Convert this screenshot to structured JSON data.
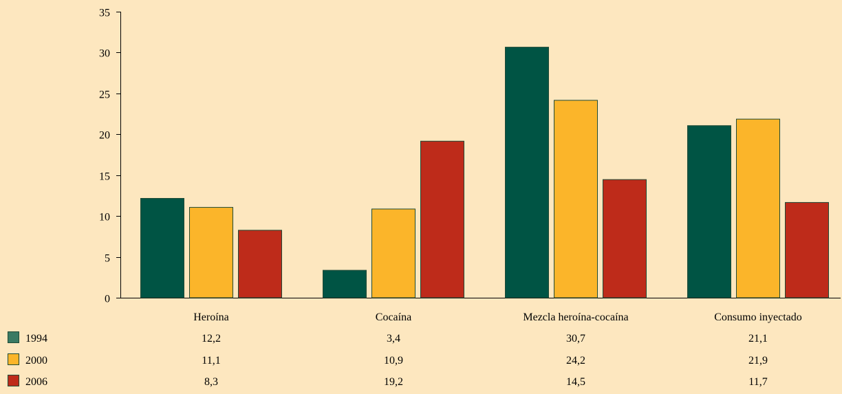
{
  "chart_data": {
    "type": "bar",
    "categories": [
      "Heroína",
      "Cocaína",
      "Mezcla heroína-cocaína",
      "Consumo inyectado"
    ],
    "series": [
      {
        "name": "1994",
        "values": [
          12.2,
          3.4,
          30.7,
          21.1
        ],
        "labels": [
          "12,2",
          "3,4",
          "30,7",
          "21,1"
        ],
        "color": "#005444",
        "legend_color": "#3a7a63"
      },
      {
        "name": "2000",
        "values": [
          11.1,
          10.9,
          24.2,
          21.9
        ],
        "labels": [
          "11,1",
          "10,9",
          "24,2",
          "21,9"
        ],
        "color": "#fbb52a",
        "legend_color": "#fbb52a"
      },
      {
        "name": "2006",
        "values": [
          8.3,
          19.2,
          14.5,
          11.7
        ],
        "labels": [
          "8,3",
          "19,2",
          "14,5",
          "11,7"
        ],
        "color": "#be2b1a",
        "legend_color": "#be2b1a"
      }
    ],
    "ylim": [
      0,
      35
    ],
    "yticks": [
      "0",
      "5",
      "10",
      "15",
      "20",
      "25",
      "30",
      "35"
    ],
    "title": "",
    "xlabel": "",
    "ylabel": "",
    "grid": false,
    "legend_placement": "bottom-left data table",
    "background": "#fde7bf",
    "axis_color": "#000000"
  }
}
